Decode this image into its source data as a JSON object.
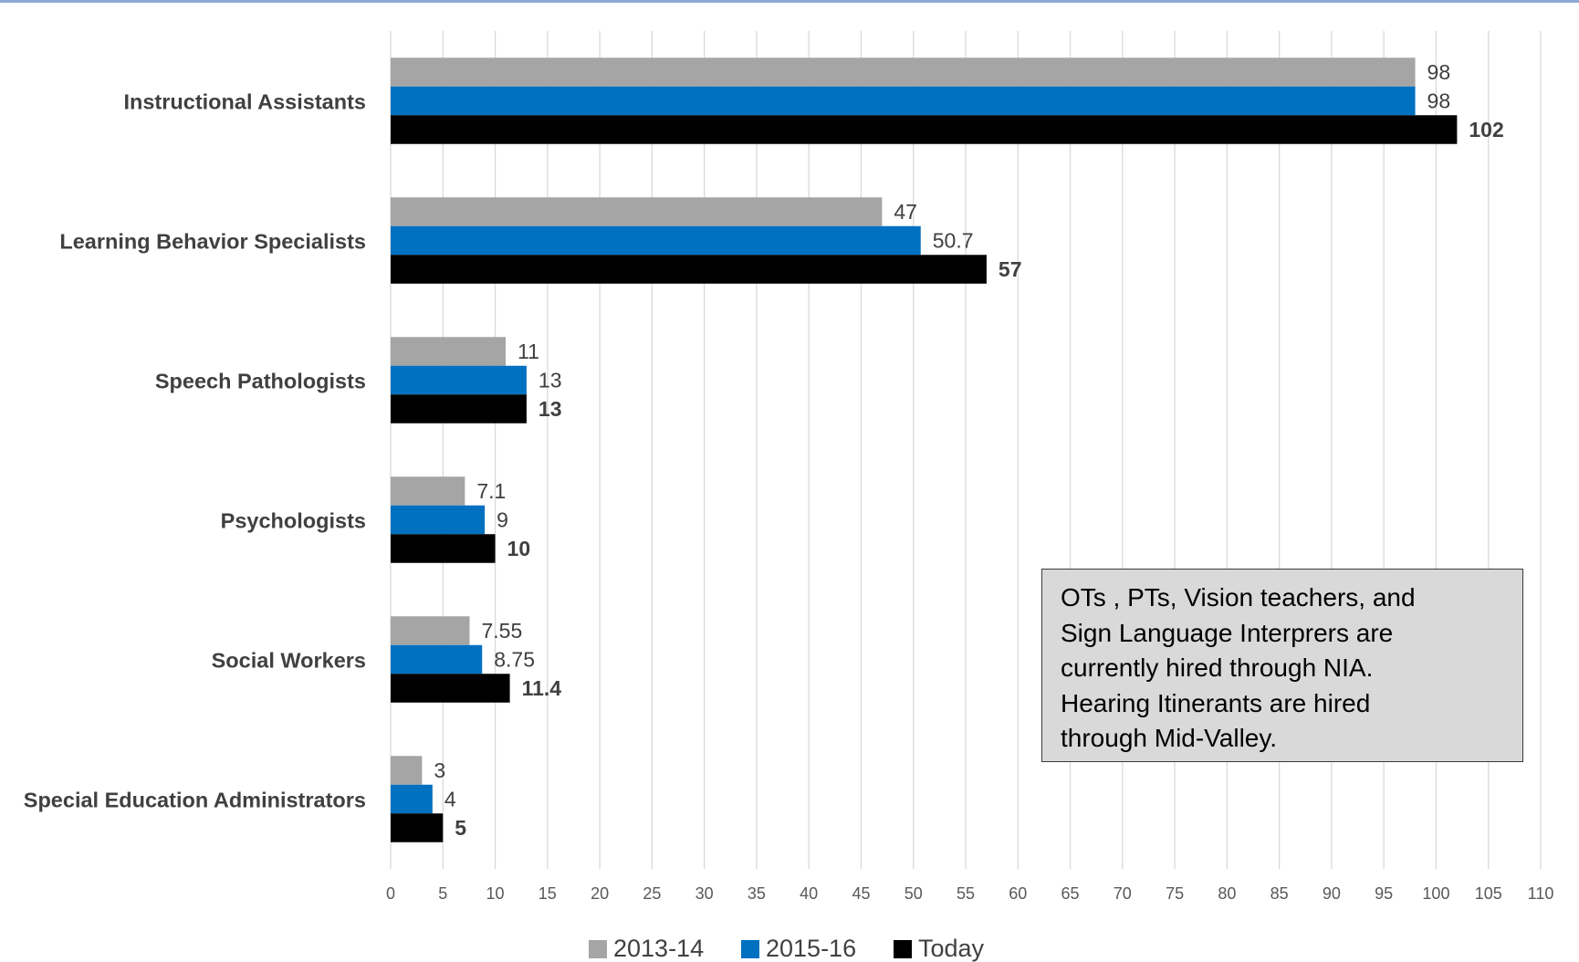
{
  "chart_data": {
    "type": "bar",
    "orientation": "horizontal",
    "categories": [
      "Instructional Assistants",
      "Learning Behavior Specialists",
      "Speech Pathologists",
      "Psychologists",
      "Social Workers",
      "Special Education Administrators"
    ],
    "series": [
      {
        "name": "2013-14",
        "color": "#a5a5a5",
        "values": [
          98,
          47,
          11,
          7.1,
          7.55,
          3
        ],
        "labels": [
          "98",
          "47",
          "11",
          "7.1",
          "7.55",
          "3"
        ]
      },
      {
        "name": "2015-16",
        "color": "#0070c0",
        "values": [
          98,
          50.7,
          13,
          9,
          8.75,
          4
        ],
        "labels": [
          "98",
          "50.7",
          "13",
          "9",
          "8.75",
          "4"
        ]
      },
      {
        "name": "Today",
        "color": "#000000",
        "values": [
          102,
          57,
          13,
          10,
          11.4,
          5
        ],
        "labels": [
          "102",
          "57",
          "13",
          "10",
          "11.4",
          "5"
        ],
        "bold_labels": true
      }
    ],
    "xlim": [
      0,
      110
    ],
    "xticks": [
      0,
      5,
      10,
      15,
      20,
      25,
      30,
      35,
      40,
      45,
      50,
      55,
      60,
      65,
      70,
      75,
      80,
      85,
      90,
      95,
      100,
      105,
      110
    ],
    "grid": "vertical",
    "legend_position": "bottom",
    "title": "",
    "xlabel": "",
    "ylabel": ""
  },
  "annotation": {
    "text": "OTs , PTs, Vision teachers, and\nSign Language Interprers are\ncurrently hired through NIA.\nHearing Itinerants are hired\nthrough Mid-Valley."
  },
  "colors": {
    "grid": "#d9d9d9",
    "axis_text": "#595959",
    "category_text": "#404040",
    "border": "#8ea9d6"
  }
}
